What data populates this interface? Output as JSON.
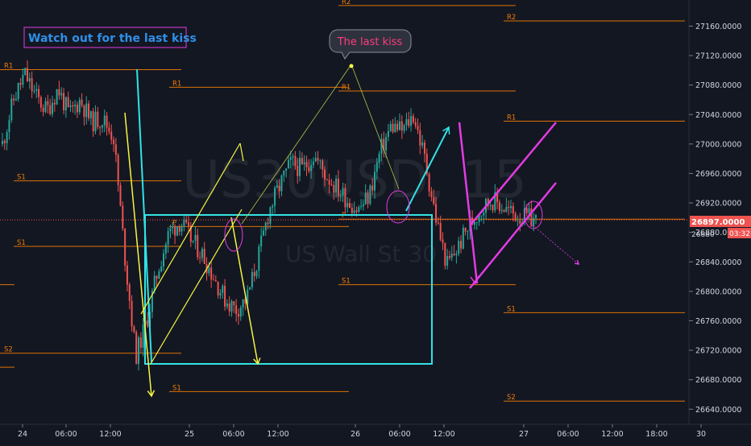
{
  "chart_data": {
    "type": "candlestick",
    "watermark": {
      "symbol": "US30USD, 15",
      "name": "US Wall St 30"
    },
    "y_axis": {
      "range": [
        26625,
        27190
      ],
      "ticks": [
        27160,
        27120,
        27080,
        27040,
        27000,
        26960,
        26920,
        26880,
        26840,
        26800,
        26760,
        26720,
        26680,
        26640
      ],
      "tick_labels": [
        "27160.0000",
        "27120.0000",
        "27080.0000",
        "27040.0000",
        "27000.0000",
        "26960.0000",
        "26920.0000",
        "26880.0000",
        "26840.0000",
        "26800.0000",
        "26760.0000",
        "26720.0000",
        "26680.0000",
        "26640.0000"
      ]
    },
    "x_axis": {
      "tick_labels": [
        "24",
        "06:00",
        "12:00",
        "25",
        "06:00",
        "12:00",
        "26",
        "06:00",
        "12:00",
        "27",
        "06:00",
        "12:00",
        "18:00",
        "30"
      ]
    },
    "last_price": {
      "value": 26897,
      "label": "26897.0000",
      "countdown": "03:32"
    },
    "secondary_price_label": "26880",
    "pivot_levels": [
      {
        "label": "R1",
        "value": 27101
      },
      {
        "label": "S1",
        "value": 26950
      },
      {
        "label": "S1",
        "value": 26861
      },
      {
        "label": "S2",
        "value": 26716
      },
      {
        "label": "",
        "value": 26809
      },
      {
        "label": "",
        "value": 26697
      },
      {
        "label": "P",
        "value": 26888
      },
      {
        "label": "R1",
        "value": 27077
      },
      {
        "label": "S1",
        "value": 26664
      },
      {
        "label": "R2",
        "value": 27188
      },
      {
        "label": "R1",
        "value": 27072
      },
      {
        "label": "P",
        "value": 26898
      },
      {
        "label": "S1",
        "value": 26809
      },
      {
        "label": "R2",
        "value": 27167
      },
      {
        "label": "R1",
        "value": 27031
      },
      {
        "label": "S1",
        "value": 26771
      },
      {
        "label": "S2",
        "value": 26651
      }
    ],
    "price_path": [
      27000,
      27060,
      27095,
      27065,
      27045,
      27075,
      27040,
      27060,
      27030,
      27035,
      27010,
      26850,
      26712,
      26760,
      26830,
      26880,
      26895,
      26870,
      26850,
      26820,
      26790,
      26775,
      26790,
      26845,
      26910,
      26945,
      26975,
      26965,
      26985,
      26960,
      26942,
      26925,
      26910,
      26930,
      26990,
      27025,
      27018,
      27040,
      26980,
      26900,
      26835,
      26860,
      26890,
      26910,
      26925,
      26915,
      26905,
      26900,
      26897
    ]
  },
  "annotations": {
    "title_note": "Watch out for the last kiss",
    "bubble_note": "The last kiss",
    "colors": {
      "up": "#26a69a",
      "down": "#ef5350",
      "pivot_line": "#f57c00",
      "cyan": "#31e3e5",
      "yellow": "#f5f542",
      "magenta": "#e33be3",
      "title_text": "#2f8fe6",
      "bubble_text": "#ff3c7d"
    }
  }
}
